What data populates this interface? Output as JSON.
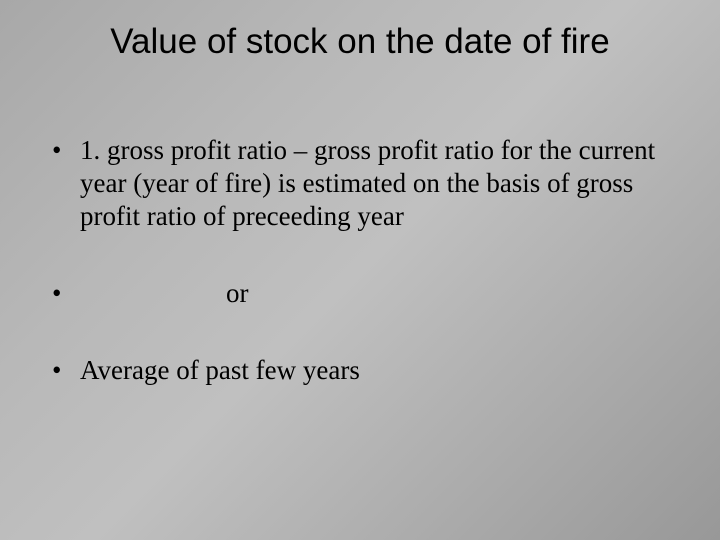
{
  "title": "Value of stock on the date of fire",
  "bullets": {
    "item1": "1. gross profit ratio – gross profit ratio for the current year (year of fire) is estimated on the basis of gross profit ratio of preceeding year",
    "item2": "or",
    "item3": "Average of past few years"
  },
  "styling": {
    "slide_width": 720,
    "slide_height": 540,
    "title_fontsize": 35,
    "body_fontsize": 27,
    "title_font": "Arial",
    "body_font": "Times New Roman",
    "text_color": "#000000",
    "bg_gradient_start": "#a8a8a8",
    "bg_gradient_end": "#989898"
  }
}
